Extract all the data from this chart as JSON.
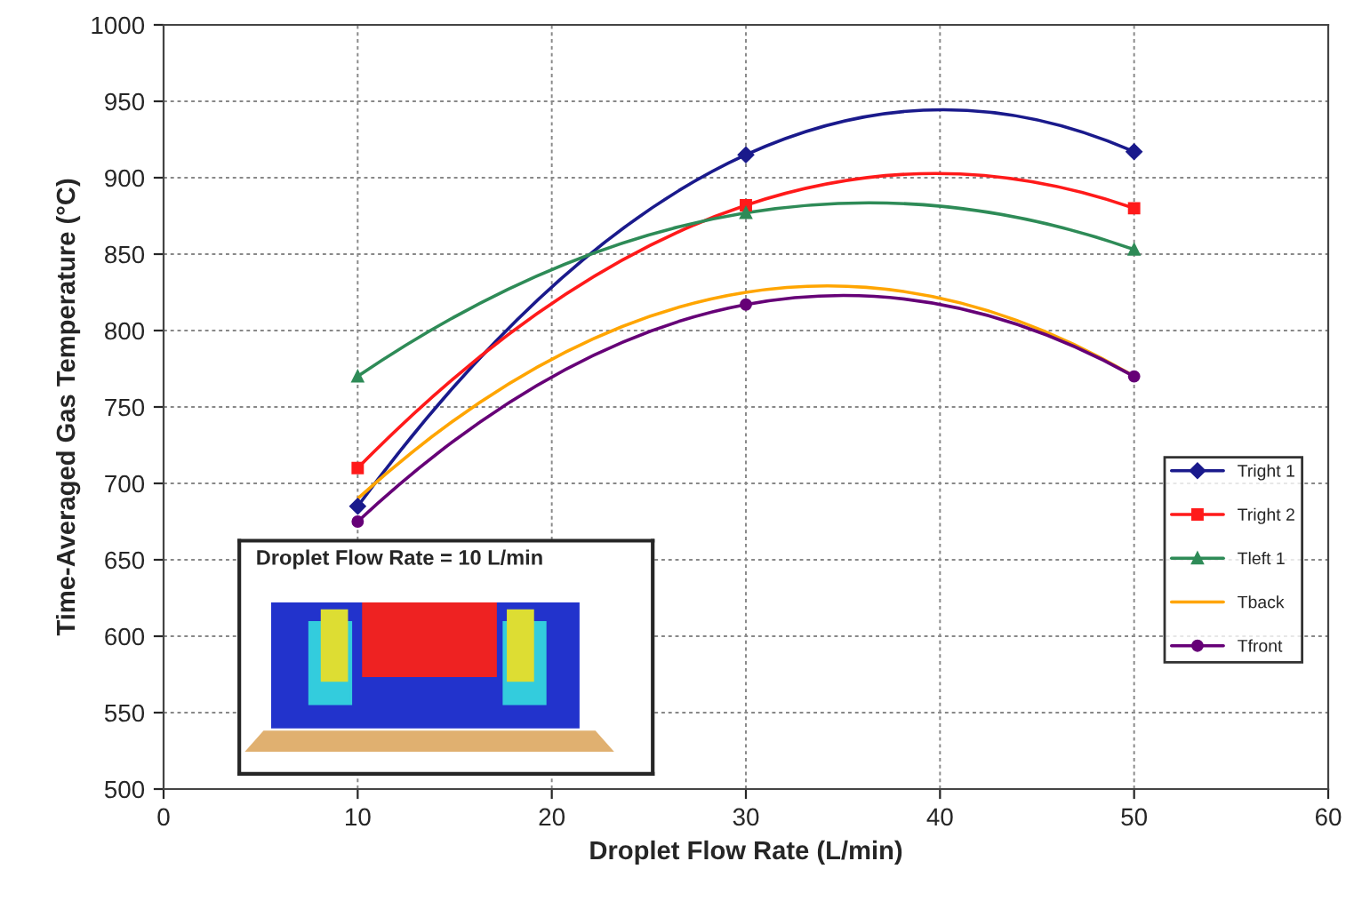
{
  "chart_data": {
    "type": "line",
    "xlabel": "Droplet Flow Rate (L/min)",
    "ylabel": "Time-Averaged Gas Temperature (°C)",
    "x": [
      10,
      30,
      50
    ],
    "series": [
      {
        "name": "Tright 1",
        "color": "#1a1a8c",
        "marker": "diamond",
        "values": [
          685,
          915,
          917
        ]
      },
      {
        "name": "Tright 2",
        "color": "#ff1a1a",
        "marker": "square",
        "values": [
          710,
          882,
          880
        ]
      },
      {
        "name": "Tleft 1",
        "color": "#2e8b57",
        "marker": "triangle",
        "values": [
          770,
          877,
          853
        ]
      },
      {
        "name": "Tback",
        "color": "#ffa500",
        "marker": "none",
        "values": [
          690,
          825,
          770
        ]
      },
      {
        "name": "Tfront",
        "color": "#660077",
        "marker": "circle",
        "values": [
          675,
          817,
          770
        ]
      }
    ],
    "xlim": [
      0,
      60
    ],
    "xticks": [
      0,
      10,
      20,
      30,
      40,
      50,
      60
    ],
    "ylim": [
      500,
      1000
    ],
    "yticks": [
      500,
      550,
      600,
      650,
      700,
      750,
      800,
      850,
      900,
      950,
      1000
    ],
    "grid": true,
    "legend": "right",
    "annotations": [
      "Droplet Flow Rate = 10 L/min"
    ]
  }
}
